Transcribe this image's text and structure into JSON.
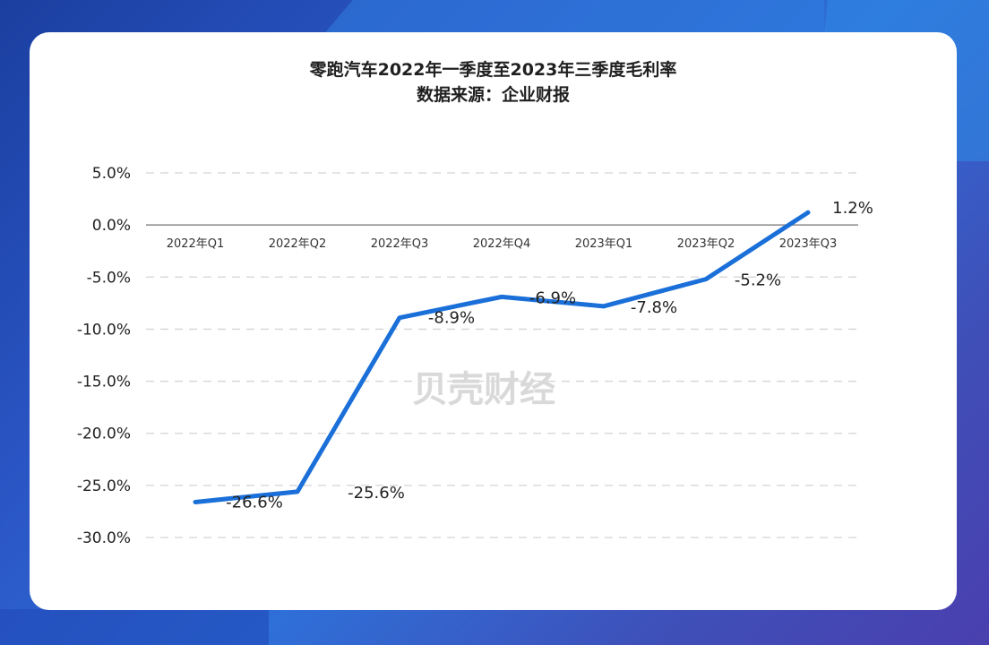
{
  "chart_data": {
    "type": "line",
    "title": "零跑汽车2022年一季度至2023年三季度毛利率",
    "subtitle": "数据来源：企业财报",
    "categories": [
      "2022年Q1",
      "2022年Q2",
      "2022年Q3",
      "2022年Q4",
      "2023年Q1",
      "2023年Q2",
      "2023年Q3"
    ],
    "series": [
      {
        "values": [
          -26.6,
          -25.6,
          -8.9,
          -6.9,
          -7.8,
          -5.2,
          1.2
        ]
      }
    ],
    "data_labels": [
      "-26.6%",
      "-25.6%",
      "-8.9%",
      "-6.9%",
      "-7.8%",
      "-5.2%",
      "1.2%"
    ],
    "y_ticks": [
      "5.0%",
      "0.0%",
      "-5.0%",
      "-10.0%",
      "-15.0%",
      "-20.0%",
      "-25.0%",
      "-30.0%"
    ],
    "ylim": [
      -30,
      5
    ],
    "grid": "horizontal-dashed",
    "line_color": "#1a6fd8",
    "watermark": "贝壳财经"
  }
}
